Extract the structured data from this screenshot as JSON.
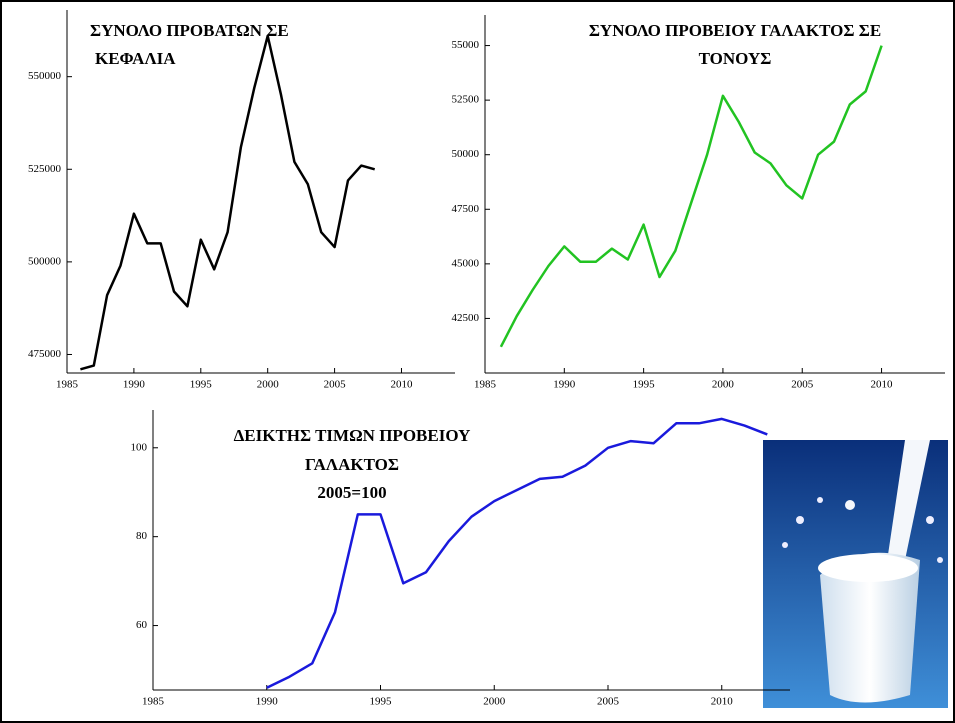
{
  "chart_data": [
    {
      "type": "line",
      "title": [
        "ΣΥΝΟΛΟ ΠΡΟΒΑΤΩΝ ΣΕ",
        "ΚΕΦΑΛΙΑ"
      ],
      "color": "#000000",
      "x": [
        1986,
        1987,
        1988,
        1989,
        1990,
        1991,
        1992,
        1993,
        1994,
        1995,
        1996,
        1997,
        1998,
        1999,
        2000,
        2001,
        2002,
        2003,
        2004,
        2005,
        2006,
        2007,
        2008
      ],
      "values": [
        471000,
        472000,
        491000,
        499000,
        513000,
        505000,
        505000,
        492000,
        488000,
        506000,
        498000,
        508000,
        531000,
        547000,
        561000,
        545000,
        527000,
        521000,
        508000,
        504000,
        522000,
        526000,
        525000
      ],
      "xlim": [
        1985,
        2014
      ],
      "xticks": [
        1985,
        1990,
        1995,
        2000,
        2005,
        2010
      ],
      "ylim": [
        470000,
        568000
      ],
      "yticks": [
        475000,
        500000,
        525000,
        550000
      ]
    },
    {
      "type": "line",
      "title": [
        "ΣΥΝΟΛΟ ΠΡΟΒΕΙΟΥ ΓΑΛΑΚΤΟΣ ΣΕ",
        "ΤΟΝΟΥΣ"
      ],
      "color": "#22c322",
      "x": [
        1986,
        1987,
        1988,
        1989,
        1990,
        1991,
        1992,
        1993,
        1994,
        1995,
        1996,
        1997,
        1998,
        1999,
        2000,
        2001,
        2002,
        2003,
        2004,
        2005,
        2006,
        2007,
        2008,
        2009,
        2010
      ],
      "values": [
        41200,
        42600,
        43800,
        44900,
        45800,
        45100,
        45100,
        45700,
        45200,
        46800,
        44400,
        45600,
        47800,
        50000,
        52700,
        51500,
        50100,
        49600,
        48600,
        48000,
        50000,
        50600,
        52300,
        52900,
        55000
      ],
      "xlim": [
        1985,
        2014
      ],
      "xticks": [
        1985,
        1990,
        1995,
        2000,
        2005,
        2010
      ],
      "ylim": [
        40000,
        56400
      ],
      "yticks": [
        42500,
        45000,
        47500,
        50000,
        52500,
        55000
      ]
    },
    {
      "type": "line",
      "title": [
        "ΔΕΙΚΤΗΣ ΤΙΜΩΝ ΠΡΟΒΕΙΟΥ",
        "ΓΑΛΑΚΤΟΣ",
        "2005=100"
      ],
      "color": "#1a1adc",
      "x": [
        1990,
        1991,
        1992,
        1993,
        1994,
        1995,
        1996,
        1997,
        1998,
        1999,
        2000,
        2001,
        2002,
        2003,
        2004,
        2005,
        2006,
        2007,
        2008,
        2009,
        2010,
        2011,
        2012
      ],
      "values": [
        46,
        48.5,
        51.5,
        63,
        85,
        85,
        69.5,
        72,
        79,
        84.5,
        88,
        90.5,
        93,
        93.5,
        96,
        100,
        101.5,
        101,
        105.5,
        105.5,
        106.5,
        105,
        103
      ],
      "xlim": [
        1985,
        2013
      ],
      "xticks": [
        1985,
        1990,
        1995,
        2000,
        2005,
        2010
      ],
      "ylim": [
        45.5,
        108.5
      ],
      "yticks": [
        60,
        80,
        100
      ]
    }
  ]
}
